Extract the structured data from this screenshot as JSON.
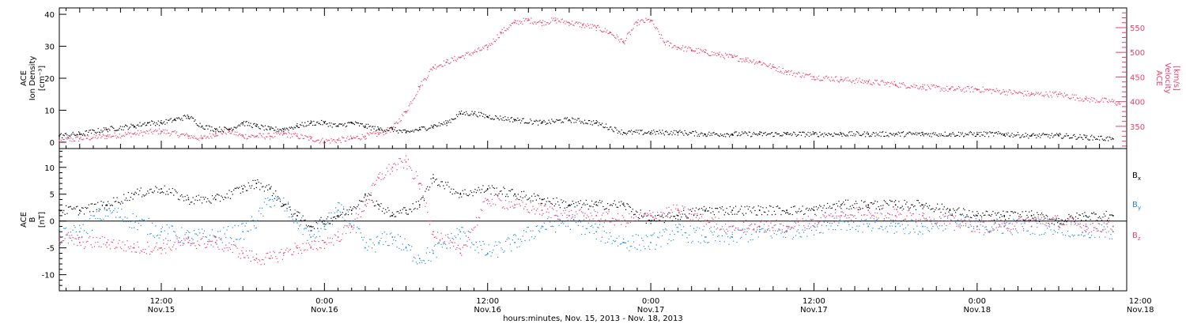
{
  "chart_data": [
    {
      "type": "scatter",
      "panel": "top",
      "title": "",
      "xlabel": "hours:minutes, Nov. 15, 2013 - Nov. 18, 2013",
      "xlim": [
        4.5,
        83
      ],
      "left_axis": {
        "label_lines": [
          "ACE",
          "Ion Density",
          "[cm⁻³]"
        ],
        "ylim": [
          -2,
          42
        ],
        "ticks": [
          0,
          10,
          20,
          30,
          40
        ],
        "color": "#000000"
      },
      "right_axis": {
        "label_lines": [
          "ACE",
          "Velocity",
          "[km/s]"
        ],
        "ylim": [
          305,
          590
        ],
        "ticks": [
          350,
          400,
          450,
          500,
          550
        ],
        "color": "#e8406a"
      },
      "series": [
        {
          "color": "#000000",
          "axis": "left",
          "x": [
            4.5,
            6,
            8,
            10,
            11,
            12,
            13,
            14,
            15,
            16,
            17,
            18,
            19,
            20,
            21,
            22,
            23,
            24,
            25,
            26,
            27,
            28,
            29,
            30,
            31,
            32,
            33,
            34,
            35,
            36,
            38,
            40,
            42,
            44,
            46,
            48,
            50,
            52,
            54,
            56,
            58,
            60,
            62,
            64,
            66,
            68,
            70,
            72,
            74,
            76,
            78,
            80,
            82
          ],
          "y": [
            2,
            2.5,
            4,
            5,
            6,
            6,
            7,
            8,
            5,
            4,
            4,
            6,
            5,
            4,
            4,
            5,
            6,
            6,
            5,
            6,
            5,
            4,
            4,
            3,
            4,
            5,
            6,
            9,
            9,
            8,
            7,
            6,
            7,
            6,
            3,
            3,
            3,
            2.5,
            2.5,
            2.5,
            2.5,
            2.5,
            2.5,
            2.5,
            2.5,
            2.5,
            2.5,
            2.5,
            2.5,
            2,
            2,
            1.5,
            1
          ]
        },
        {
          "color": "#e8406a",
          "axis": "right",
          "x": [
            4.5,
            6,
            8,
            10,
            12,
            14,
            15,
            16,
            17,
            18,
            19,
            20,
            21,
            22,
            23,
            24,
            25,
            26,
            27,
            28,
            29,
            30,
            31,
            32,
            33,
            34,
            35,
            36,
            37,
            38,
            39,
            40,
            41,
            42,
            43,
            44,
            45,
            46,
            47,
            48,
            49,
            50,
            51,
            52,
            53,
            54,
            55,
            56,
            57,
            58,
            60,
            62,
            64,
            66,
            68,
            70,
            72,
            74,
            76,
            78,
            80,
            82,
            82.5
          ],
          "y": [
            320,
            325,
            330,
            335,
            340,
            330,
            325,
            335,
            340,
            330,
            330,
            330,
            335,
            330,
            325,
            320,
            322,
            325,
            330,
            335,
            345,
            380,
            430,
            470,
            480,
            490,
            500,
            510,
            540,
            560,
            565,
            560,
            565,
            560,
            555,
            550,
            540,
            520,
            560,
            565,
            520,
            510,
            505,
            500,
            495,
            490,
            485,
            480,
            470,
            460,
            450,
            445,
            440,
            435,
            430,
            425,
            425,
            420,
            415,
            415,
            405,
            400,
            395
          ]
        }
      ]
    },
    {
      "type": "scatter",
      "panel": "bottom",
      "xlabel": "hours:minutes, Nov. 15, 2013 - Nov. 18, 2013",
      "xlim": [
        4.5,
        83
      ],
      "ylabel_lines": [
        "ACE",
        "B",
        "[nT]"
      ],
      "ylim": [
        -13,
        13.5
      ],
      "yticks": [
        -10,
        -5,
        0,
        5,
        10
      ],
      "zero_line": true,
      "x_ticks": [
        {
          "value": 12,
          "time": "12:00",
          "date": "Nov.15"
        },
        {
          "value": 24,
          "time": "0:00",
          "date": "Nov.16"
        },
        {
          "value": 36,
          "time": "12:00",
          "date": "Nov.16"
        },
        {
          "value": 48,
          "time": "0:00",
          "date": "Nov.17"
        },
        {
          "value": 60,
          "time": "12:00",
          "date": "Nov.17"
        },
        {
          "value": 72,
          "time": "0:00",
          "date": "Nov.18"
        },
        {
          "value": 84,
          "time": "12:00",
          "date": "Nov.18"
        }
      ],
      "series": [
        {
          "name": "B",
          "subscript": "x",
          "color": "#000000",
          "x": [
            4.5,
            6,
            8,
            10,
            12,
            14,
            16,
            18,
            19,
            20,
            21,
            22,
            23,
            24,
            25,
            26,
            27,
            28,
            29,
            30,
            31,
            32,
            34,
            36,
            38,
            40,
            42,
            44,
            46,
            48,
            50,
            52,
            54,
            56,
            58,
            60,
            62,
            64,
            66,
            68,
            70,
            72,
            74,
            76,
            78,
            80,
            82
          ],
          "y": [
            2,
            2,
            3,
            5,
            6,
            4,
            4,
            6,
            7,
            6,
            3,
            1,
            -1,
            0,
            1,
            2,
            5,
            3,
            1,
            2,
            3,
            8,
            5,
            6,
            5,
            4,
            3,
            3,
            3,
            0,
            1,
            2,
            2,
            2,
            2,
            2,
            3,
            3,
            3,
            3,
            2,
            1,
            1,
            1,
            0,
            1,
            1
          ]
        },
        {
          "name": "B",
          "subscript": "y",
          "color": "#1e88e5",
          "x": [
            4.5,
            6,
            8,
            10,
            12,
            14,
            16,
            18,
            19,
            20,
            21,
            22,
            23,
            24,
            25,
            26,
            27,
            28,
            29,
            30,
            31,
            32,
            34,
            36,
            38,
            40,
            42,
            44,
            46,
            48,
            50,
            52,
            54,
            56,
            58,
            60,
            62,
            64,
            66,
            68,
            70,
            72,
            74,
            76,
            78,
            80,
            82
          ],
          "y": [
            -3,
            -2,
            2,
            0,
            -2,
            -3,
            -3,
            -2,
            0,
            4,
            3,
            0,
            -3,
            -1,
            2,
            0,
            -5,
            -4,
            -3,
            -5,
            -7,
            -6,
            -2,
            -6,
            -4,
            -1,
            0,
            -2,
            -4,
            -4,
            -2,
            -3,
            -3,
            -2,
            -2,
            -1,
            0,
            -1,
            -1,
            -1,
            0,
            -1,
            -1,
            -1,
            -1,
            -2,
            -2
          ]
        },
        {
          "name": "B",
          "subscript": "z",
          "color": "#e8406a",
          "x": [
            4.5,
            6,
            8,
            10,
            12,
            14,
            16,
            18,
            19,
            20,
            21,
            22,
            23,
            24,
            25,
            26,
            27,
            28,
            29,
            30,
            31,
            32,
            34,
            36,
            38,
            40,
            42,
            44,
            46,
            48,
            50,
            52,
            54,
            56,
            58,
            60,
            62,
            64,
            66,
            68,
            70,
            72,
            74,
            76,
            78,
            80,
            82
          ],
          "y": [
            -3,
            -4,
            -4,
            -5,
            -5,
            -4,
            -4,
            -6,
            -7,
            -7,
            -6,
            -5,
            -5,
            -4,
            -3,
            -1,
            3,
            8,
            10,
            11,
            7,
            -2,
            -6,
            4,
            3,
            2,
            1,
            1,
            0,
            1,
            2,
            0,
            -1,
            -1,
            -1,
            0,
            1,
            2,
            1,
            1,
            0,
            -1,
            -1,
            0,
            0,
            -1,
            -1
          ]
        }
      ]
    }
  ]
}
